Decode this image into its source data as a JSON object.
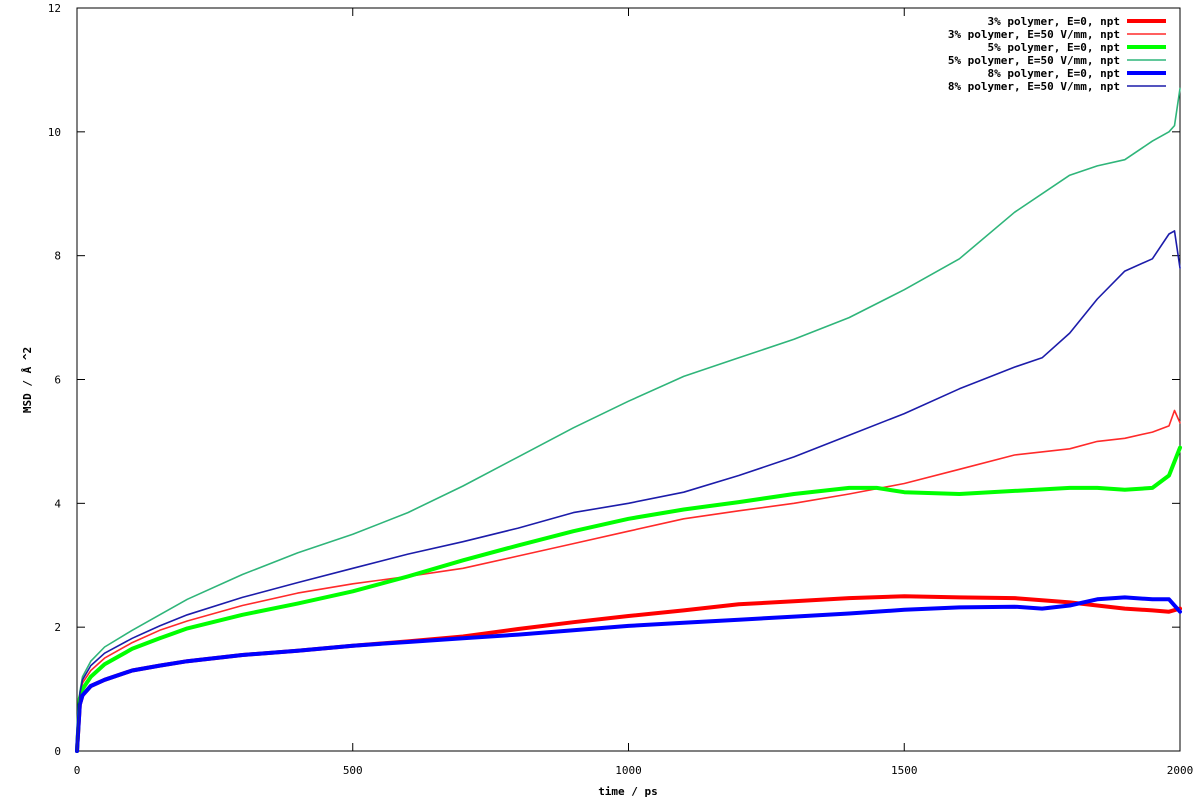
{
  "chart_data": {
    "type": "line",
    "xlabel": "time / ps",
    "ylabel": "MSD / Å ^2",
    "xlim": [
      0,
      2000
    ],
    "ylim": [
      0,
      12
    ],
    "x_ticks": [
      0,
      500,
      1000,
      1500,
      2000
    ],
    "y_ticks": [
      0,
      2,
      4,
      6,
      8,
      10,
      12
    ],
    "grid": false,
    "legend_position": "top-right",
    "series": [
      {
        "name": "3% polymer, E=0, npt",
        "color": "#ff0000",
        "width": "thick",
        "x": [
          0,
          5,
          10,
          25,
          50,
          100,
          150,
          200,
          300,
          400,
          500,
          600,
          700,
          800,
          900,
          1000,
          1100,
          1200,
          1300,
          1400,
          1500,
          1600,
          1700,
          1800,
          1850,
          1900,
          1950,
          1980,
          2000
        ],
        "y": [
          0,
          0.75,
          0.9,
          1.05,
          1.15,
          1.3,
          1.38,
          1.45,
          1.55,
          1.62,
          1.7,
          1.77,
          1.85,
          1.97,
          2.08,
          2.18,
          2.27,
          2.37,
          2.42,
          2.47,
          2.5,
          2.48,
          2.47,
          2.4,
          2.35,
          2.3,
          2.27,
          2.25,
          2.3
        ]
      },
      {
        "name": "3% polymer, E=50 V/mm, npt",
        "color": "#ff2a2a",
        "width": "thin",
        "x": [
          0,
          5,
          10,
          25,
          50,
          100,
          150,
          200,
          300,
          400,
          500,
          600,
          700,
          800,
          900,
          1000,
          1100,
          1200,
          1300,
          1400,
          1500,
          1600,
          1700,
          1800,
          1850,
          1900,
          1950,
          1980,
          1990,
          2000
        ],
        "y": [
          0,
          0.9,
          1.1,
          1.3,
          1.5,
          1.75,
          1.95,
          2.1,
          2.35,
          2.55,
          2.7,
          2.82,
          2.95,
          3.15,
          3.35,
          3.55,
          3.75,
          3.88,
          4.0,
          4.15,
          4.32,
          4.55,
          4.78,
          4.88,
          5.0,
          5.05,
          5.15,
          5.25,
          5.5,
          5.3
        ]
      },
      {
        "name": "5% polymer, E=0, npt",
        "color": "#00ff00",
        "width": "thick",
        "x": [
          0,
          5,
          10,
          25,
          50,
          100,
          150,
          200,
          300,
          400,
          500,
          600,
          700,
          800,
          900,
          1000,
          1100,
          1200,
          1300,
          1400,
          1450,
          1500,
          1600,
          1700,
          1800,
          1850,
          1900,
          1950,
          1980,
          2000
        ],
        "y": [
          0,
          0.85,
          1.0,
          1.2,
          1.4,
          1.65,
          1.82,
          1.98,
          2.2,
          2.38,
          2.58,
          2.82,
          3.08,
          3.32,
          3.55,
          3.75,
          3.9,
          4.02,
          4.15,
          4.25,
          4.25,
          4.18,
          4.15,
          4.2,
          4.25,
          4.25,
          4.22,
          4.25,
          4.45,
          4.9
        ]
      },
      {
        "name": "5% polymer, E=50 V/mm, npt",
        "color": "#2fb57a",
        "width": "thin",
        "x": [
          0,
          5,
          10,
          25,
          50,
          100,
          150,
          200,
          300,
          400,
          500,
          600,
          700,
          800,
          900,
          1000,
          1100,
          1200,
          1300,
          1400,
          1500,
          1600,
          1700,
          1800,
          1850,
          1900,
          1950,
          1980,
          1990,
          2000
        ],
        "y": [
          0,
          0.95,
          1.2,
          1.45,
          1.68,
          1.95,
          2.2,
          2.45,
          2.85,
          3.2,
          3.5,
          3.85,
          4.28,
          4.75,
          5.22,
          5.65,
          6.05,
          6.35,
          6.65,
          7.0,
          7.45,
          7.95,
          8.7,
          9.3,
          9.45,
          9.55,
          9.85,
          10.0,
          10.1,
          10.7
        ]
      },
      {
        "name": "8% polymer, E=0, npt",
        "color": "#0000ff",
        "width": "thick",
        "x": [
          0,
          5,
          10,
          25,
          50,
          100,
          150,
          200,
          300,
          400,
          500,
          600,
          700,
          800,
          900,
          1000,
          1100,
          1200,
          1300,
          1400,
          1500,
          1600,
          1700,
          1750,
          1800,
          1850,
          1900,
          1950,
          1980,
          2000
        ],
        "y": [
          0,
          0.75,
          0.9,
          1.05,
          1.15,
          1.3,
          1.38,
          1.45,
          1.55,
          1.62,
          1.7,
          1.76,
          1.82,
          1.88,
          1.95,
          2.02,
          2.07,
          2.12,
          2.17,
          2.22,
          2.28,
          2.32,
          2.33,
          2.3,
          2.35,
          2.45,
          2.48,
          2.45,
          2.45,
          2.25
        ]
      },
      {
        "name": "8% polymer, E=50 V/mm, npt",
        "color": "#1c1caa",
        "width": "thin",
        "x": [
          0,
          5,
          10,
          25,
          50,
          100,
          150,
          200,
          300,
          400,
          500,
          600,
          700,
          800,
          900,
          1000,
          1100,
          1200,
          1300,
          1400,
          1500,
          1600,
          1700,
          1750,
          1800,
          1850,
          1900,
          1950,
          1980,
          1990,
          2000
        ],
        "y": [
          0,
          0.92,
          1.15,
          1.38,
          1.58,
          1.82,
          2.02,
          2.2,
          2.48,
          2.72,
          2.95,
          3.18,
          3.38,
          3.6,
          3.85,
          4.0,
          4.18,
          4.45,
          4.75,
          5.1,
          5.45,
          5.85,
          6.2,
          6.35,
          6.75,
          7.3,
          7.75,
          7.95,
          8.35,
          8.4,
          7.8
        ]
      }
    ]
  }
}
